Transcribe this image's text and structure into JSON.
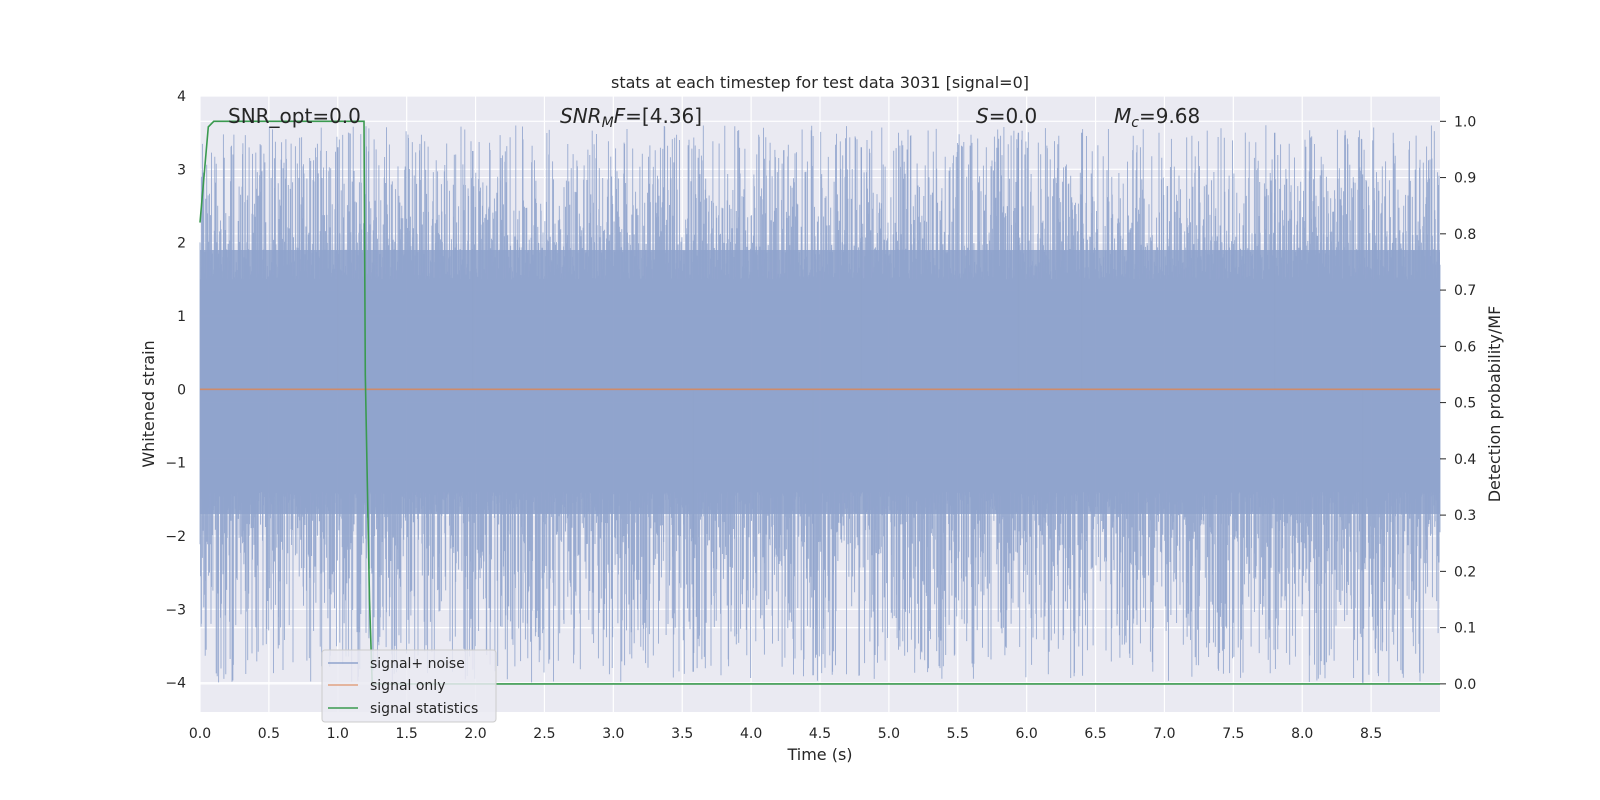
{
  "chart_data": {
    "type": "line",
    "title": "stats at each timestep for test data 3031 [signal=0]",
    "xlabel": "Time (s)",
    "ylabel_left": "Whitened strain",
    "ylabel_right": "Detection probability/MF",
    "xlim": [
      0.0,
      9.0
    ],
    "ylim_left": [
      -4.4,
      4.0
    ],
    "ylim_right": [
      -0.05,
      1.045
    ],
    "xticks": [
      "0.0",
      "0.5",
      "1.0",
      "1.5",
      "2.0",
      "2.5",
      "3.0",
      "3.5",
      "4.0",
      "4.5",
      "5.0",
      "5.5",
      "6.0",
      "6.5",
      "7.0",
      "7.5",
      "8.0",
      "8.5"
    ],
    "yticks_left": [
      "4",
      "3",
      "2",
      "1",
      "0",
      "−1",
      "−2",
      "−3",
      "−4"
    ],
    "yticks_right": [
      "1.0",
      "0.9",
      "0.8",
      "0.7",
      "0.6",
      "0.5",
      "0.4",
      "0.3",
      "0.2",
      "0.1",
      "0.0"
    ],
    "grid": true,
    "legend_placement": "lower-left",
    "annotations": {
      "snr_opt": "SNR_opt=0.0",
      "snr_mf_main": "SNR",
      "snr_mf_sub": "M",
      "snr_mf_tail": "F",
      "snr_mf_value": "=[4.36]",
      "s_label": "S",
      "s_value": "=0.0",
      "mc_label": "M",
      "mc_sub": "c",
      "mc_value": "=9.68"
    },
    "series": [
      {
        "name": "signal+ noise",
        "color": "#8fa3cc",
        "axis": "left",
        "kind": "noise",
        "time_range": [
          0.0,
          9.0
        ],
        "core_band": [
          -1.7,
          1.9
        ],
        "envelope": [
          -4.0,
          3.6
        ],
        "notable_peaks": [
          [
            1.0,
            3.3
          ],
          [
            1.98,
            3.25
          ],
          [
            4.8,
            3.3
          ],
          [
            5.94,
            3.5
          ],
          [
            6.4,
            3.5
          ],
          [
            7.8,
            3.5
          ],
          [
            8.44,
            -4.0
          ],
          [
            4.45,
            -3.9
          ],
          [
            3.58,
            -3.85
          ]
        ]
      },
      {
        "name": "signal only",
        "color": "#dd8452",
        "axis": "left",
        "x": [
          0.0,
          9.0
        ],
        "y": [
          0.0,
          0.0
        ]
      },
      {
        "name": "signal statistics",
        "color": "#3a9a4f",
        "axis": "right",
        "x": [
          0.0,
          0.06,
          0.1,
          0.15,
          0.5,
          0.9,
          1.19,
          1.2,
          1.23,
          1.25,
          1.3,
          9.0
        ],
        "y": [
          0.82,
          0.99,
          1.0,
          1.0,
          1.0,
          1.0,
          1.0,
          0.55,
          0.15,
          0.0,
          0.0,
          0.0
        ]
      }
    ]
  }
}
